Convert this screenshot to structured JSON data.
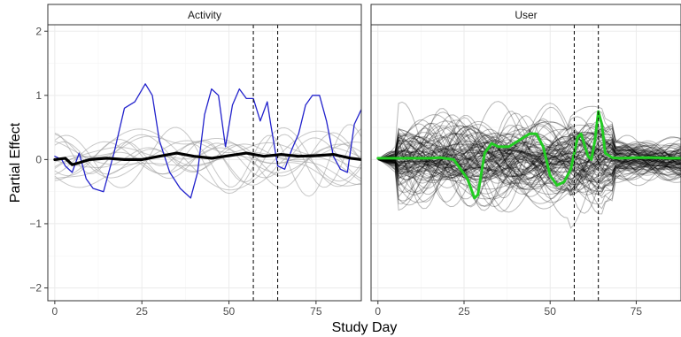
{
  "chart_data": {
    "type": "line",
    "xlabel": "Study Day",
    "ylabel": "Partial Effect",
    "xlim": [
      -2,
      88
    ],
    "ylim": [
      -2.2,
      2.1
    ],
    "x_ticks": [
      0,
      25,
      50,
      75
    ],
    "y_ticks": [
      -2,
      -1,
      0,
      1,
      2
    ],
    "y_tick_labels": [
      "−2",
      "−1",
      "0",
      "1",
      "2"
    ],
    "vlines": [
      57,
      64
    ],
    "grid": true,
    "colors": {
      "background_lines": "#9a9a9a",
      "user_lines": "#000000",
      "activity_highlight": "#2222cc",
      "activity_mean": "#000000",
      "user_highlight": "#22cc22",
      "strip_fill": "#ffffff",
      "panel_border": "#333333",
      "grid_major": "#ebebeb",
      "grid_minor": "#f5f5f5",
      "vline": "#000000"
    },
    "panels": [
      {
        "name": "Activity",
        "background_line_count": 14,
        "background_amplitude": 0.55,
        "series": [
          {
            "role": "highlight",
            "color": "#2222cc",
            "x": [
              0,
              2,
              3,
              5,
              7,
              9,
              11,
              14,
              17,
              20,
              23,
              26,
              28,
              30,
              33,
              36,
              39,
              41,
              43,
              45,
              47,
              49,
              51,
              53,
              55,
              57,
              59,
              61,
              62,
              64,
              66,
              68,
              70,
              72,
              74,
              76,
              78,
              80,
              82,
              84,
              86,
              88
            ],
            "y": [
              0.05,
              0.0,
              -0.1,
              -0.2,
              0.1,
              -0.3,
              -0.45,
              -0.5,
              0.1,
              0.8,
              0.9,
              1.18,
              1.0,
              0.3,
              -0.2,
              -0.45,
              -0.6,
              -0.2,
              0.7,
              1.1,
              1.0,
              0.2,
              0.85,
              1.1,
              0.95,
              0.95,
              0.6,
              0.9,
              0.55,
              -0.1,
              -0.15,
              0.15,
              0.4,
              0.85,
              1.0,
              1.0,
              0.6,
              0.05,
              -0.15,
              -0.2,
              0.55,
              0.78
            ]
          },
          {
            "role": "mean",
            "color": "#000000",
            "x": [
              0,
              3,
              5,
              7,
              10,
              15,
              20,
              25,
              30,
              35,
              40,
              45,
              50,
              55,
              60,
              65,
              70,
              75,
              80,
              85,
              88
            ],
            "y": [
              0.0,
              0.02,
              -0.08,
              -0.05,
              0.0,
              0.02,
              0.0,
              0.0,
              0.05,
              0.1,
              0.05,
              0.02,
              0.06,
              0.1,
              0.05,
              0.08,
              0.05,
              0.06,
              0.08,
              0.02,
              0.0
            ]
          }
        ]
      },
      {
        "name": "User",
        "background_line_count": 110,
        "background_amplitude": 0.6,
        "series": [
          {
            "role": "highlight",
            "color": "#22cc22",
            "x": [
              0,
              5,
              10,
              15,
              18,
              22,
              26,
              28,
              29,
              31,
              33,
              35,
              38,
              41,
              44,
              46,
              48,
              50,
              52,
              54,
              56,
              58,
              59,
              61,
              62,
              63,
              64,
              65,
              66,
              68,
              70,
              75,
              80,
              85,
              88
            ],
            "y": [
              0.02,
              0.02,
              0.02,
              0.02,
              0.03,
              0.0,
              -0.3,
              -0.6,
              -0.55,
              0.1,
              0.25,
              0.2,
              0.2,
              0.3,
              0.4,
              0.4,
              0.2,
              -0.25,
              -0.4,
              -0.35,
              -0.15,
              0.35,
              0.4,
              0.05,
              0.0,
              0.3,
              0.75,
              0.55,
              0.1,
              0.03,
              0.02,
              0.03,
              0.03,
              0.02,
              0.02
            ]
          }
        ]
      }
    ]
  }
}
